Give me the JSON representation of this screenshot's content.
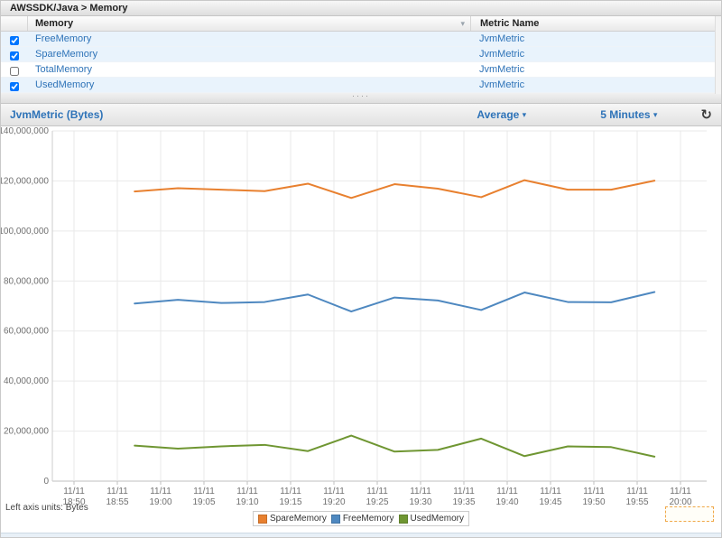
{
  "header": {
    "breadcrumb": "AWSSDK/Java > Memory"
  },
  "icons": {
    "sort_arrow": "▾",
    "dropdown_arrow": "▾",
    "refresh": "↻",
    "splitter_dots": "····"
  },
  "table": {
    "columns": [
      "Memory",
      "Metric Name"
    ],
    "rows": [
      {
        "name": "FreeMemory",
        "metric": "JvmMetric",
        "checked": true,
        "selected": true
      },
      {
        "name": "SpareMemory",
        "metric": "JvmMetric",
        "checked": true,
        "selected": true
      },
      {
        "name": "TotalMemory",
        "metric": "JvmMetric",
        "checked": false,
        "selected": false
      },
      {
        "name": "UsedMemory",
        "metric": "JvmMetric",
        "checked": true,
        "selected": true
      }
    ]
  },
  "chart_panel": {
    "title": "JvmMetric (Bytes)",
    "statistic_dropdown": "Average",
    "period_dropdown": "5 Minutes",
    "footnote": "Left axis units: Bytes"
  },
  "chart_data": {
    "type": "line",
    "title": "JvmMetric (Bytes)",
    "x_date": "11/11",
    "x": [
      "18:57",
      "19:02",
      "19:07",
      "19:12",
      "19:17",
      "19:22",
      "19:27",
      "19:32",
      "19:37",
      "19:42",
      "19:47",
      "19:52",
      "19:57"
    ],
    "series": [
      {
        "name": "SpareMemory",
        "color": "#e8802f",
        "values": [
          115800000,
          117100000,
          116500000,
          115900000,
          118900000,
          113200000,
          118700000,
          116900000,
          113500000,
          120300000,
          116500000,
          116500000,
          120100000
        ]
      },
      {
        "name": "FreeMemory",
        "color": "#4e88c0",
        "values": [
          71000000,
          72500000,
          71200000,
          71600000,
          74600000,
          67800000,
          73400000,
          72200000,
          68400000,
          75400000,
          71600000,
          71500000,
          75600000
        ]
      },
      {
        "name": "UsedMemory",
        "color": "#6f9632",
        "values": [
          14200000,
          13000000,
          13900000,
          14500000,
          12000000,
          18200000,
          11800000,
          12500000,
          17000000,
          10000000,
          13900000,
          13600000,
          9800000
        ]
      }
    ],
    "xticks": [
      "18:50",
      "18:55",
      "19:00",
      "19:05",
      "19:10",
      "19:15",
      "19:20",
      "19:25",
      "19:30",
      "19:35",
      "19:40",
      "19:45",
      "19:50",
      "19:55",
      "20:00"
    ],
    "ylim": [
      0,
      140000000
    ],
    "ytick_step": 20000000,
    "ylabel_units": "Bytes",
    "legend_position": "bottom-center",
    "grid": true
  },
  "colors": {
    "link_blue": "#2e73b8",
    "row_selected_bg": "#e9f3fc",
    "gridline": "#e9e9e9",
    "axis_label": "#707070",
    "dashed_box_border": "#f0a848"
  }
}
